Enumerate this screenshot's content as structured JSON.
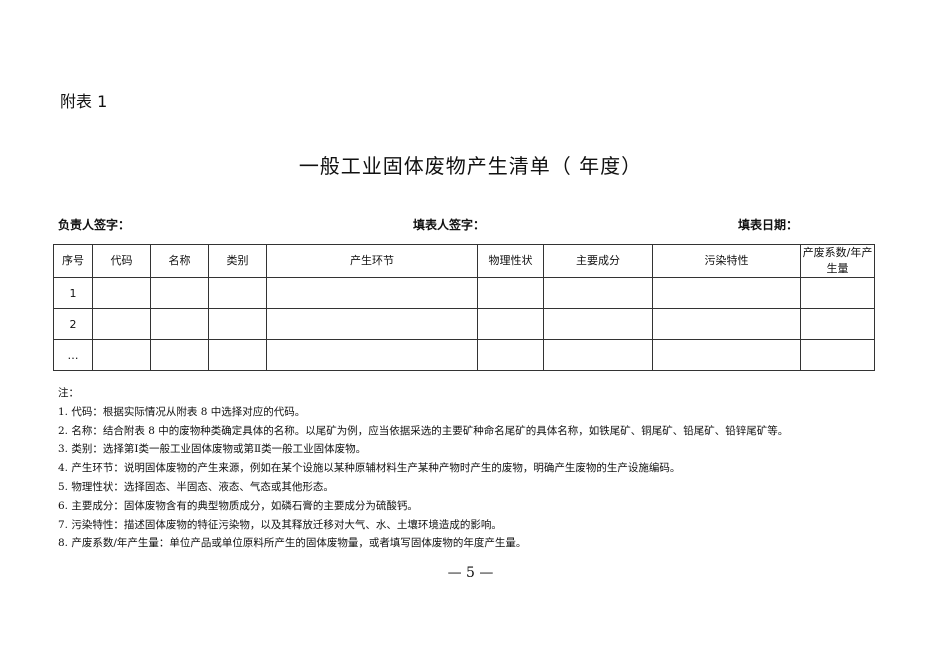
{
  "appendix_label": "附表 1",
  "title": "一般工业固体废物产生清单（    年度）",
  "signatures": {
    "responsible": "负责人签字：",
    "filler": "填表人签字：",
    "date": "填表日期："
  },
  "table": {
    "headers": [
      "序号",
      "代码",
      "名称",
      "类别",
      "产生环节",
      "物理性状",
      "主要成分",
      "污染特性",
      "产废系数/年产生量"
    ],
    "rows": [
      [
        "1",
        "",
        "",
        "",
        "",
        "",
        "",
        "",
        ""
      ],
      [
        "2",
        "",
        "",
        "",
        "",
        "",
        "",
        "",
        ""
      ],
      [
        "…",
        "",
        "",
        "",
        "",
        "",
        "",
        "",
        ""
      ]
    ]
  },
  "notes": {
    "heading": "注：",
    "items": [
      "1. 代码：根据实际情况从附表 8 中选择对应的代码。",
      "2. 名称：结合附表 8 中的废物种类确定具体的名称。以尾矿为例，应当依据采选的主要矿种命名尾矿的具体名称，如铁尾矿、铜尾矿、铅尾矿、铅锌尾矿等。",
      "3. 类别：选择第Ⅰ类一般工业固体废物或第Ⅱ类一般工业固体废物。",
      "4. 产生环节：说明固体废物的产生来源，例如在某个设施以某种原辅材料生产某种产物时产生的废物，明确产生废物的生产设施编码。",
      "5. 物理性状：选择固态、半固态、液态、气态或其他形态。",
      "6. 主要成分：固体废物含有的典型物质成分，如磷石膏的主要成分为硫酸钙。",
      "7. 污染特性：描述固体废物的特征污染物，以及其释放迁移对大气、水、土壤环境造成的影响。",
      "8. 产废系数/年产生量：单位产品或单位原料所产生的固体废物量，或者填写固体废物的年度产生量。"
    ]
  },
  "page_number": "— 5 —"
}
